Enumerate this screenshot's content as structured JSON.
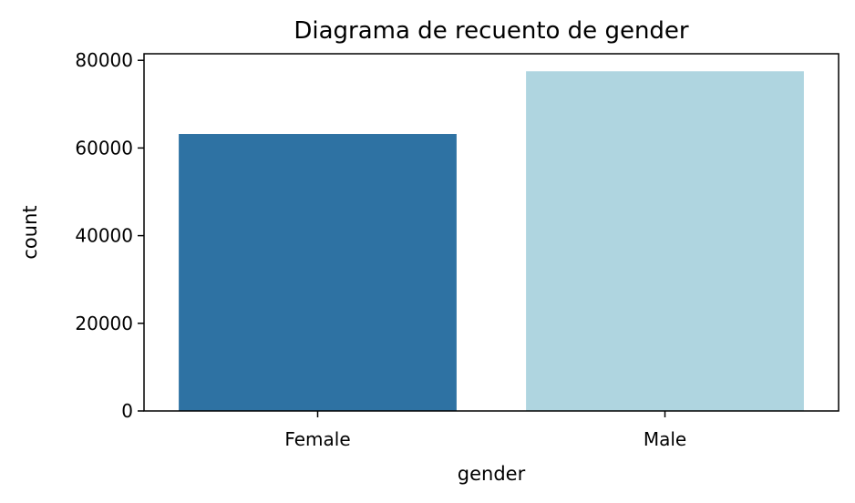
{
  "chart_data": {
    "type": "bar",
    "title": "Diagrama de recuento de gender",
    "xlabel": "gender",
    "ylabel": "count",
    "categories": [
      "Female",
      "Male"
    ],
    "values": [
      63200,
      77500
    ],
    "colors": [
      "#2e72a3",
      "#afd5e0"
    ],
    "ylim": [
      0,
      81500
    ],
    "yticks": [
      0,
      20000,
      40000,
      60000,
      80000
    ],
    "ytick_labels": [
      "0",
      "20000",
      "40000",
      "60000",
      "80000"
    ],
    "grid": false,
    "legend": "none"
  }
}
